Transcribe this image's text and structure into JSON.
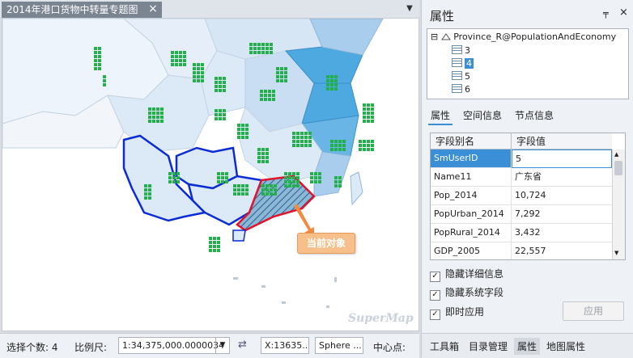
{
  "map_window": {
    "tab_title": "2014年港口货物中转量专题图",
    "close_glyph": "×",
    "dropdown_glyph": "▼",
    "callout": "当前对象",
    "watermark": "SuperMap"
  },
  "status_bar": {
    "selected_label": "选择个数: 4",
    "scale_label": "比例尺:",
    "scale_value": "1:34,375,000.0000034",
    "scale_dropdown": "▼",
    "swap_glyph": "⇄",
    "coord_x": "X:13635...",
    "projection": "Sphere ...",
    "center_label": "中心点:"
  },
  "properties_panel": {
    "title": "属性",
    "pin_glyph": "╤",
    "close_glyph": "×",
    "tree": {
      "expander": "⊟",
      "root": "Province_R@PopulationAndEconomy",
      "children": [
        "3",
        "4",
        "5",
        "6"
      ],
      "selected_child": "4"
    },
    "tabs": [
      "属性",
      "空间信息",
      "节点信息"
    ],
    "active_tab": "属性",
    "grid": {
      "headers": [
        "字段别名",
        "字段值"
      ],
      "rows": [
        {
          "field": "SmUserID",
          "value": "5"
        },
        {
          "field": "Name11",
          "value": "广东省"
        },
        {
          "field": "Pop_2014",
          "value": "10,724"
        },
        {
          "field": "PopUrban_2014",
          "value": "7,292"
        },
        {
          "field": "PopRural_2014",
          "value": "3,432"
        },
        {
          "field": "GDP_2005",
          "value": "22,557"
        }
      ]
    },
    "checkboxes": [
      {
        "label": "隐藏详细信息",
        "checked": true
      },
      {
        "label": "隐藏系统字段",
        "checked": true
      },
      {
        "label": "即时应用",
        "checked": true
      }
    ],
    "check_glyph": "✓",
    "apply_label": "应用",
    "bottom_tabs": [
      "工具箱",
      "目录管理",
      "属性",
      "地图属性"
    ],
    "active_bottom_tab": "属性"
  },
  "colors": {
    "province_light": "#dce9f6",
    "province_mid": "#a9cdec",
    "province_dark": "#4ea9e0",
    "symbol_green": "#22b04b",
    "selection_blue": "#0a2bd6",
    "current_red": "#e0142a"
  }
}
